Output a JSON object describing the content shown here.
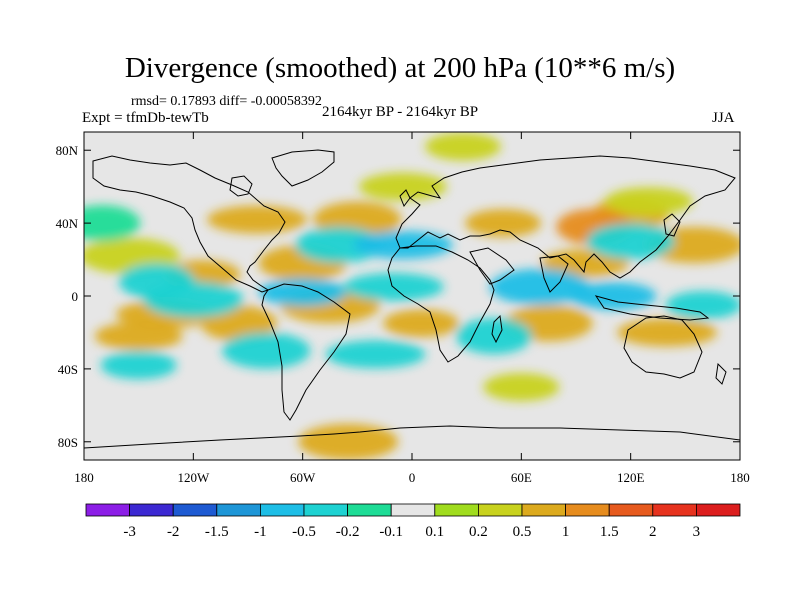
{
  "header": {
    "title": "Divergence (smoothed) at 200 hPa (10**6 m/s)",
    "stats": "rmsd= 0.17893 diff= -0.00058392",
    "experiment": "Expt = tfmDb-tewTb",
    "period": "2164kyr BP - 2164kyr BP",
    "season": "JJA"
  },
  "chart_data": {
    "type": "heatmap",
    "title": "Divergence (smoothed) at 200 hPa (10**6 m/s)",
    "projection": "cylindrical-equidistant",
    "xlim": [
      -180,
      180
    ],
    "ylim": [
      -90,
      90
    ],
    "x_ticks": [
      {
        "value": -180,
        "label": "180"
      },
      {
        "value": -120,
        "label": "120W"
      },
      {
        "value": -60,
        "label": "60W"
      },
      {
        "value": 0,
        "label": "0"
      },
      {
        "value": 60,
        "label": "60E"
      },
      {
        "value": 120,
        "label": "120E"
      },
      {
        "value": 180,
        "label": "180"
      }
    ],
    "y_ticks": [
      {
        "value": 80,
        "label": "80N"
      },
      {
        "value": 40,
        "label": "40N"
      },
      {
        "value": 0,
        "label": "0"
      },
      {
        "value": -40,
        "label": "40S"
      },
      {
        "value": -80,
        "label": "80S"
      }
    ],
    "colorbar": {
      "levels": [
        "-3",
        "-2",
        "-1.5",
        "-1",
        "-0.5",
        "-0.2",
        "-0.1",
        "0.1",
        "0.2",
        "0.5",
        "1",
        "1.5",
        "2",
        "3"
      ],
      "colors": [
        "#8c1ee6",
        "#3c28d2",
        "#1e5ad2",
        "#1e96d7",
        "#1ebee6",
        "#1ed2d2",
        "#1edc96",
        "#e6e6e6",
        "#a0dc1e",
        "#c8d21e",
        "#dcaa1e",
        "#e68c1e",
        "#e65a1e",
        "#e6321e",
        "#dc1e1e"
      ]
    },
    "fields": [
      {
        "lon": -115,
        "lat": 12,
        "value": 0.5
      },
      {
        "lon": -60,
        "lat": 18,
        "value": 0.5
      },
      {
        "lon": -135,
        "lat": -10,
        "value": 0.5
      },
      {
        "lon": -95,
        "lat": -15,
        "value": 0.5
      },
      {
        "lon": -150,
        "lat": -22,
        "value": 0.5
      },
      {
        "lon": -45,
        "lat": -5,
        "value": 0.5
      },
      {
        "lon": 5,
        "lat": -15,
        "value": 0.5
      },
      {
        "lon": 75,
        "lat": -15,
        "value": 0.5
      },
      {
        "lon": 140,
        "lat": -20,
        "value": 0.5
      },
      {
        "lon": 120,
        "lat": 45,
        "value": 0.5
      },
      {
        "lon": 95,
        "lat": 18,
        "value": 0.5
      },
      {
        "lon": 155,
        "lat": 28,
        "value": 0.5
      },
      {
        "lon": 50,
        "lat": 40,
        "value": 0.5
      },
      {
        "lon": -30,
        "lat": 42,
        "value": 0.5
      },
      {
        "lon": -85,
        "lat": 42,
        "value": 0.5
      },
      {
        "lon": 100,
        "lat": 38,
        "value": 1
      },
      {
        "lon": 130,
        "lat": 52,
        "value": 0.2
      },
      {
        "lon": -155,
        "lat": 22,
        "value": 0.2
      },
      {
        "lon": 28,
        "lat": 82,
        "value": 0.2
      },
      {
        "lon": -40,
        "lat": 28,
        "value": -0.5
      },
      {
        "lon": -5,
        "lat": 28,
        "value": -1
      },
      {
        "lon": -140,
        "lat": 8,
        "value": -0.5
      },
      {
        "lon": -60,
        "lat": 2,
        "value": -1
      },
      {
        "lon": -120,
        "lat": -2,
        "value": -0.5
      },
      {
        "lon": -150,
        "lat": -38,
        "value": -0.5
      },
      {
        "lon": -80,
        "lat": -30,
        "value": -0.5
      },
      {
        "lon": -20,
        "lat": -32,
        "value": -0.5
      },
      {
        "lon": 45,
        "lat": -22,
        "value": -0.5
      },
      {
        "lon": 110,
        "lat": 0,
        "value": -1
      },
      {
        "lon": 70,
        "lat": 5,
        "value": -1
      },
      {
        "lon": 160,
        "lat": -5,
        "value": -0.5
      },
      {
        "lon": 120,
        "lat": 30,
        "value": -0.5
      },
      {
        "lon": -10,
        "lat": 5,
        "value": -0.5
      },
      {
        "lon": -170,
        "lat": 40,
        "value": -0.2
      },
      {
        "lon": -5,
        "lat": 60,
        "value": 0.2
      },
      {
        "lon": -35,
        "lat": -80,
        "value": 0.5
      },
      {
        "lon": 60,
        "lat": -50,
        "value": 0.2
      }
    ]
  }
}
